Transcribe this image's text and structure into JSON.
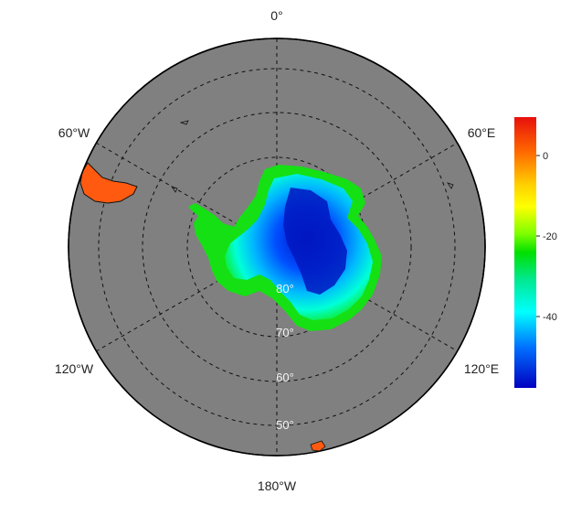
{
  "map": {
    "projection": "south polar stereographic",
    "ocean_color": "#808080",
    "grid_style": "dashed",
    "longitude_labels": {
      "top": "0°",
      "upper_right": "60°E",
      "lower_right": "120°E",
      "bottom": "180°W",
      "lower_left": "120°W",
      "upper_left": "60°W"
    },
    "latitude_labels": [
      "80°",
      "70°",
      "60°",
      "50°"
    ]
  },
  "colorbar": {
    "tick_labels": [
      "0",
      "-20",
      "-40"
    ],
    "colors": [
      "#e8100c",
      "#ff8a00",
      "#ffff00",
      "#7fff00",
      "#00e000",
      "#00ffcc",
      "#00d8ff",
      "#0050ff",
      "#0000c0"
    ]
  },
  "legend": {
    "gradient_top": "#e8100c",
    "gradient_bottom": "#0000c0"
  }
}
